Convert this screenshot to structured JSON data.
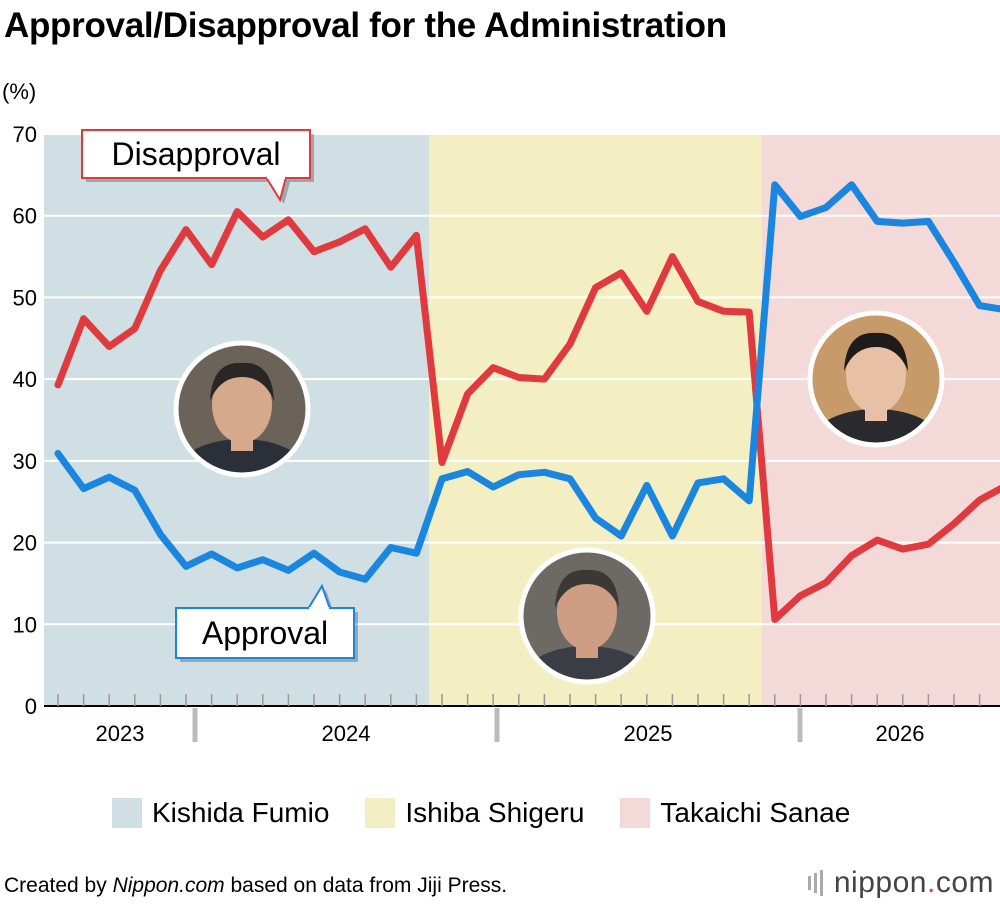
{
  "title": "Approval/Disapproval for the Administration",
  "chart_data": {
    "type": "line",
    "title": "Approval/Disapproval for the Administration",
    "ylabel": "(%)",
    "ylim": [
      0,
      70
    ],
    "yticks": [
      0,
      10,
      20,
      30,
      40,
      50,
      60,
      70
    ],
    "grid": true,
    "years": [
      "2023",
      "2024",
      "2025",
      "2026"
    ],
    "periods": [
      {
        "name": "Kishida Fumio",
        "color": "#cfdfe4",
        "start_index": 0,
        "end_index": 14
      },
      {
        "name": "Ishiba Shigeru",
        "color": "#f3efc3",
        "start_index": 15,
        "end_index": 27
      },
      {
        "name": "Takaichi Sanae",
        "color": "#f4d9d9",
        "start_index": 28,
        "end_index": 37
      }
    ],
    "series": [
      {
        "name": "Disapproval",
        "color": "#e03a3e",
        "values": [
          39.3,
          47.4,
          44.0,
          46.2,
          53.3,
          58.3,
          54.0,
          60.5,
          57.4,
          59.5,
          55.6,
          56.8,
          58.4,
          53.7,
          57.6,
          29.8,
          38.2,
          41.4,
          40.2,
          40.0,
          44.3,
          51.2,
          53.0,
          48.3,
          55.0,
          49.5,
          48.3,
          48.2,
          10.6,
          13.5,
          15.1,
          18.4,
          20.3,
          19.2,
          19.8,
          22.3,
          25.2,
          26.9
        ]
      },
      {
        "name": "Approval",
        "color": "#1a86df",
        "values": [
          30.9,
          26.6,
          28.0,
          26.4,
          21.0,
          17.1,
          18.6,
          16.9,
          17.9,
          16.6,
          18.7,
          16.4,
          15.5,
          19.4,
          18.7,
          27.8,
          28.7,
          26.8,
          28.3,
          28.6,
          27.8,
          23.0,
          20.8,
          27.0,
          20.8,
          27.3,
          27.8,
          25.1,
          63.8,
          59.9,
          61.0,
          63.8,
          59.3,
          59.1,
          59.3,
          54.3,
          49.0,
          48.5
        ]
      }
    ],
    "annotations": [
      {
        "label": "Disapproval",
        "series": "Disapproval"
      },
      {
        "label": "Approval",
        "series": "Approval"
      }
    ],
    "legend": [
      "Kishida Fumio",
      "Ishiba Shigeru",
      "Takaichi Sanae"
    ]
  },
  "legend": {
    "items": [
      {
        "label": "Kishida Fumio",
        "color": "#cfdfe4"
      },
      {
        "label": "Ishiba Shigeru",
        "color": "#f3efc3"
      },
      {
        "label": "Takaichi Sanae",
        "color": "#f4d9d9"
      }
    ]
  },
  "footer": {
    "prefix": "Created by ",
    "source_name": "Nippon.com",
    "suffix": " based on data from Jiji Press."
  },
  "brand": {
    "name": "nippon",
    "dot": ".",
    "tld": "com"
  }
}
